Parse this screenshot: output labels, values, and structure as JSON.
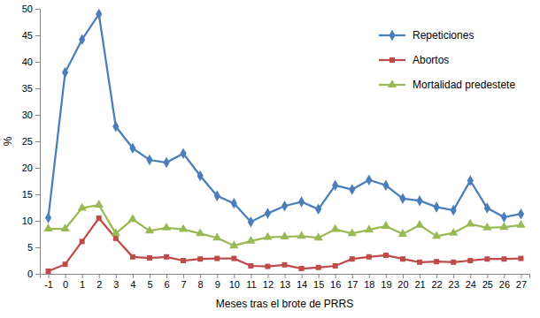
{
  "chart_data": {
    "type": "line",
    "x_label": "Meses tras el brote de PRRS",
    "y_label": "%",
    "categories": [
      "-1",
      "0",
      "1",
      "2",
      "3",
      "4",
      "5",
      "6",
      "7",
      "8",
      "9",
      "10",
      "11",
      "12",
      "13",
      "14",
      "15",
      "16",
      "17",
      "18",
      "19",
      "20",
      "21",
      "22",
      "23",
      "24",
      "25",
      "26",
      "27"
    ],
    "ylim": [
      0,
      50
    ],
    "yticks": [
      0,
      5,
      10,
      15,
      20,
      25,
      30,
      35,
      40,
      45,
      50
    ],
    "grid": false,
    "legend": "upper right",
    "series": [
      {
        "name": "Repeticiones",
        "color": "#4a7ebb",
        "marker": "diamond",
        "values": [
          10.6,
          38,
          44.2,
          49,
          27.8,
          23.7,
          21.5,
          21,
          22.7,
          18.5,
          14.7,
          13.3,
          9.8,
          11.4,
          12.8,
          13.6,
          12.2,
          16.7,
          15.9,
          17.7,
          16.7,
          14.2,
          13.8,
          12.6,
          12,
          17.6,
          12.4,
          10.7,
          11.3
        ]
      },
      {
        "name": "Abortos",
        "color": "#be4b48",
        "marker": "square",
        "values": [
          0.5,
          1.8,
          6.1,
          10.5,
          6.7,
          3.2,
          3,
          3.2,
          2.5,
          2.8,
          2.9,
          2.9,
          1.5,
          1.4,
          1.7,
          1.0,
          1.2,
          1.5,
          2.8,
          3.2,
          3.5,
          2.8,
          2.2,
          2.3,
          2.2,
          2.5,
          2.8,
          2.8,
          2.9
        ]
      },
      {
        "name": "Mortalidad predestete",
        "color": "#98b954",
        "marker": "triangle",
        "values": [
          8.5,
          8.5,
          12.4,
          13,
          7.6,
          10.3,
          8.1,
          8.7,
          8.4,
          7.6,
          6.8,
          5.3,
          6.2,
          6.9,
          7,
          7.1,
          6.8,
          8.4,
          7.6,
          8.3,
          9,
          7.5,
          9.2,
          7.1,
          7.7,
          9.4,
          8.7,
          8.8,
          9.2
        ]
      }
    ]
  }
}
